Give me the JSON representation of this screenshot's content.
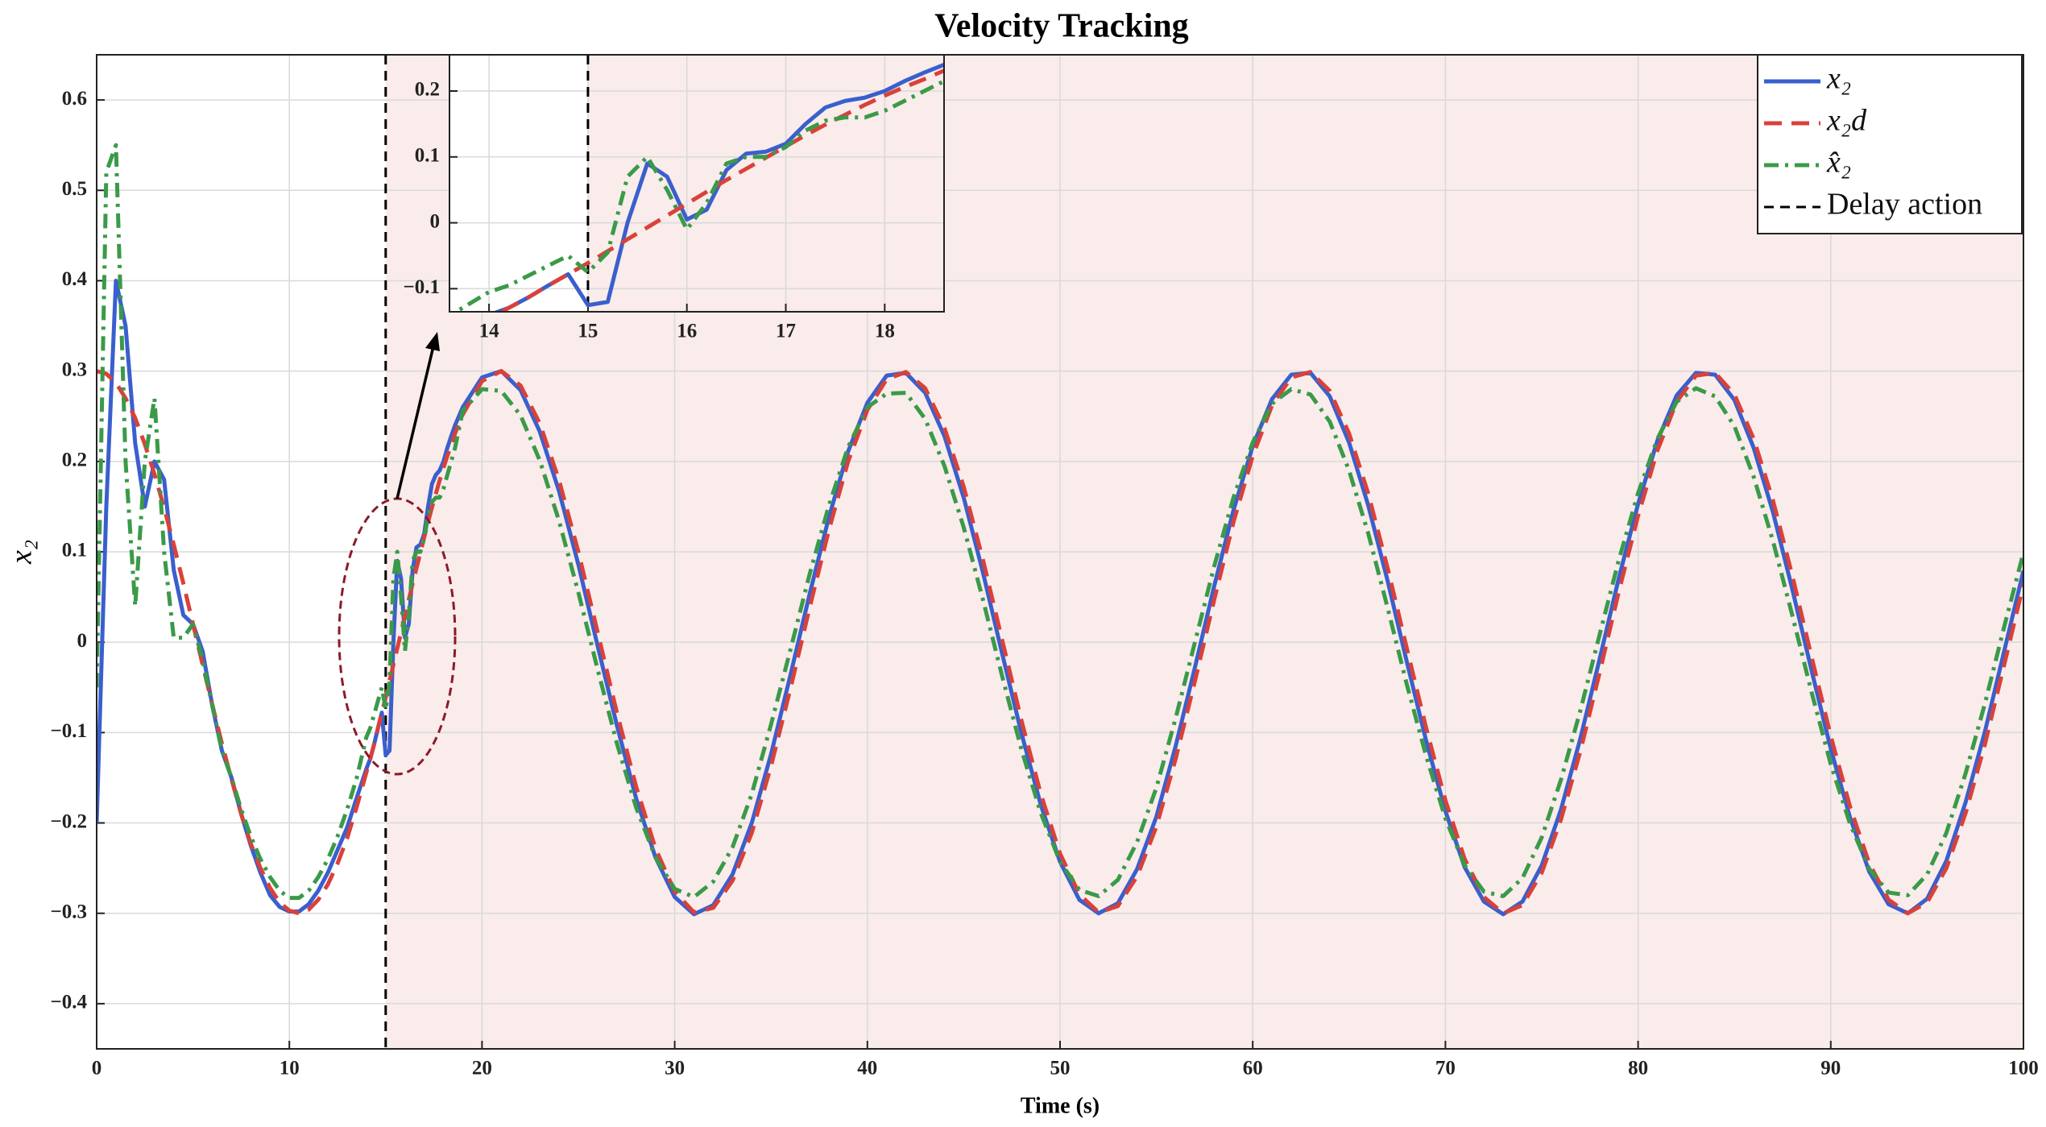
{
  "chart_data": {
    "type": "line",
    "title": "Velocity Tracking",
    "xlabel": "Time (s)",
    "ylabel": "x₂",
    "xlim": [
      0,
      100
    ],
    "ylim": [
      -0.45,
      0.65
    ],
    "xticks": [
      0,
      10,
      20,
      30,
      40,
      50,
      60,
      70,
      80,
      90,
      100
    ],
    "yticks": [
      {
        "value": -0.4,
        "label": "−0.4"
      },
      {
        "value": -0.3,
        "label": "−0.3"
      },
      {
        "value": -0.2,
        "label": "−0.2"
      },
      {
        "value": -0.1,
        "label": "−0.1"
      },
      0,
      0.1,
      0.2,
      0.3,
      0.4,
      0.5,
      0.6
    ],
    "grid": true,
    "legend": "upper right",
    "delay_action": {
      "name": "Delay action",
      "x": 15,
      "color": "#000000",
      "shade_color": "#f9ecea"
    },
    "x": [
      0,
      0.5,
      1,
      1.5,
      2,
      2.5,
      3,
      3.5,
      4,
      4.5,
      5,
      5.5,
      6,
      6.5,
      7,
      7.5,
      8,
      8.5,
      9,
      9.5,
      10,
      10.5,
      11,
      11.5,
      12,
      12.5,
      13,
      13.5,
      14,
      14.2,
      14.4,
      14.6,
      14.8,
      15,
      15.2,
      15.4,
      15.6,
      15.8,
      16,
      16.2,
      16.4,
      16.6,
      16.8,
      17,
      17.2,
      17.4,
      17.6,
      17.8,
      18,
      18.2,
      18.4,
      18.6,
      19,
      20,
      21,
      22,
      23,
      24,
      25,
      26,
      27,
      28,
      29,
      30,
      31,
      32,
      33,
      34,
      35,
      36,
      37,
      38,
      39,
      40,
      41,
      42,
      43,
      44,
      45,
      46,
      47,
      48,
      49,
      50,
      51,
      52,
      53,
      54,
      55,
      56,
      57,
      58,
      59,
      60,
      61,
      62,
      63,
      64,
      65,
      66,
      67,
      68,
      69,
      70,
      71,
      72,
      73,
      74,
      75,
      76,
      77,
      78,
      79,
      80,
      81,
      82,
      83,
      84,
      85,
      86,
      87,
      88,
      89,
      90,
      91,
      92,
      93,
      94,
      95,
      96,
      97,
      98,
      99,
      100
    ],
    "series": [
      {
        "name": "x₂",
        "color": "#3a5fcd",
        "style": "solid",
        "values": [
          -0.2,
          0.15,
          0.4,
          0.35,
          0.22,
          0.15,
          0.2,
          0.18,
          0.08,
          0.03,
          0.02,
          -0.01,
          -0.07,
          -0.12,
          -0.15,
          -0.19,
          -0.225,
          -0.255,
          -0.28,
          -0.293,
          -0.298,
          -0.298,
          -0.29,
          -0.275,
          -0.255,
          -0.23,
          -0.205,
          -0.172,
          -0.14,
          -0.129,
          -0.113,
          -0.095,
          -0.078,
          -0.125,
          -0.12,
          0,
          0.09,
          0.07,
          0.005,
          0.02,
          0.08,
          0.105,
          0.108,
          0.12,
          0.15,
          0.175,
          0.185,
          0.19,
          0.2,
          0.215,
          0.228,
          0.24,
          0.26,
          0.293,
          0.3,
          0.279,
          0.233,
          0.167,
          0.086,
          -0.004,
          -0.092,
          -0.173,
          -0.238,
          -0.282,
          -0.301,
          -0.291,
          -0.257,
          -0.2,
          -0.124,
          -0.037,
          0.053,
          0.138,
          0.211,
          0.265,
          0.295,
          0.298,
          0.276,
          0.228,
          0.16,
          0.077,
          -0.013,
          -0.101,
          -0.18,
          -0.243,
          -0.285,
          -0.3,
          -0.289,
          -0.251,
          -0.193,
          -0.115,
          -0.028,
          0.062,
          0.146,
          0.217,
          0.269,
          0.296,
          0.298,
          0.272,
          0.221,
          0.151,
          0.068,
          -0.022,
          -0.109,
          -0.187,
          -0.249,
          -0.287,
          -0.301,
          -0.287,
          -0.247,
          -0.185,
          -0.107,
          -0.019,
          0.071,
          0.153,
          0.223,
          0.273,
          0.298,
          0.296,
          0.268,
          0.215,
          0.144,
          0.059,
          -0.031,
          -0.118,
          -0.194,
          -0.254,
          -0.29,
          -0.3,
          -0.284,
          -0.242,
          -0.177,
          -0.099,
          -0.01,
          0.079
        ]
      },
      {
        "name": "x₂d",
        "color": "#d9413a",
        "style": "dashed",
        "values": [
          0.3,
          0.297,
          0.287,
          0.27,
          0.248,
          0.219,
          0.186,
          0.149,
          0.108,
          0.065,
          0.02,
          -0.025,
          -0.069,
          -0.112,
          -0.152,
          -0.19,
          -0.223,
          -0.25,
          -0.272,
          -0.288,
          -0.297,
          -0.3,
          -0.296,
          -0.285,
          -0.268,
          -0.245,
          -0.217,
          -0.182,
          -0.144,
          -0.129,
          -0.113,
          -0.095,
          -0.078,
          -0.061,
          -0.043,
          -0.025,
          -0.007,
          0.011,
          0.029,
          0.047,
          0.065,
          0.082,
          0.099,
          0.116,
          0.133,
          0.149,
          0.164,
          0.179,
          0.193,
          0.206,
          0.218,
          0.231,
          0.252,
          0.289,
          0.3,
          0.284,
          0.242,
          0.179,
          0.1,
          0.011,
          -0.078,
          -0.16,
          -0.228,
          -0.276,
          -0.299,
          -0.294,
          -0.264,
          -0.211,
          -0.137,
          -0.052,
          0.038,
          0.124,
          0.2,
          0.257,
          0.291,
          0.299,
          0.281,
          0.237,
          0.172,
          0.091,
          0.002,
          -0.087,
          -0.168,
          -0.234,
          -0.279,
          -0.299,
          -0.292,
          -0.259,
          -0.204,
          -0.129,
          -0.043,
          0.047,
          0.133,
          0.206,
          0.262,
          0.293,
          0.299,
          0.278,
          0.231,
          0.164,
          0.082,
          -0.007,
          -0.095,
          -0.175,
          -0.24,
          -0.282,
          -0.3,
          -0.291,
          -0.255,
          -0.196,
          -0.121,
          -0.034,
          0.056,
          0.14,
          0.212,
          0.266,
          0.295,
          0.298,
          0.274,
          0.225,
          0.157,
          0.074,
          -0.016,
          -0.104,
          -0.182,
          -0.245,
          -0.285,
          -0.3,
          -0.288,
          -0.25,
          -0.189,
          -0.113,
          -0.025,
          0.064
        ]
      },
      {
        "name": "x̂₂",
        "color": "#3a9a48",
        "style": "dashdot",
        "values": [
          -0.05,
          0.52,
          0.55,
          0.2,
          0.04,
          0.2,
          0.27,
          0.1,
          0.005,
          0.005,
          0.02,
          -0.02,
          -0.07,
          -0.12,
          -0.15,
          -0.185,
          -0.215,
          -0.24,
          -0.26,
          -0.275,
          -0.283,
          -0.283,
          -0.275,
          -0.26,
          -0.24,
          -0.215,
          -0.185,
          -0.15,
          -0.105,
          -0.095,
          -0.08,
          -0.065,
          -0.05,
          -0.075,
          -0.045,
          0.07,
          0.1,
          0.05,
          -0.01,
          0.03,
          0.09,
          0.1,
          0.1,
          0.115,
          0.14,
          0.155,
          0.16,
          0.16,
          0.17,
          0.185,
          0.2,
          0.215,
          0.256,
          0.28,
          0.278,
          0.251,
          0.201,
          0.134,
          0.055,
          -0.03,
          -0.112,
          -0.183,
          -0.238,
          -0.273,
          -0.282,
          -0.265,
          -0.227,
          -0.168,
          -0.091,
          -0.009,
          0.075,
          0.151,
          0.216,
          0.26,
          0.275,
          0.276,
          0.247,
          0.195,
          0.127,
          0.047,
          -0.038,
          -0.119,
          -0.189,
          -0.243,
          -0.274,
          -0.281,
          -0.263,
          -0.221,
          -0.161,
          -0.084,
          0,
          0.084,
          0.16,
          0.221,
          0.264,
          0.28,
          0.274,
          0.244,
          0.19,
          0.12,
          0.038,
          -0.047,
          -0.126,
          -0.195,
          -0.247,
          -0.276,
          -0.281,
          -0.261,
          -0.216,
          -0.152,
          -0.076,
          0.008,
          0.091,
          0.165,
          0.225,
          0.266,
          0.281,
          0.272,
          0.239,
          0.183,
          0.112,
          0.03,
          -0.055,
          -0.135,
          -0.201,
          -0.251,
          -0.277,
          -0.28,
          -0.257,
          -0.211,
          -0.145,
          -0.068,
          0.017,
          0.099
        ]
      }
    ],
    "inset": {
      "xlim": [
        13.6,
        18.6
      ],
      "ylim": [
        -0.135,
        0.255
      ],
      "xticks": [
        14,
        15,
        16,
        17,
        18
      ],
      "yticks": [
        {
          "value": -0.1,
          "label": "−0.1"
        },
        0,
        0.1,
        0.2
      ]
    }
  }
}
